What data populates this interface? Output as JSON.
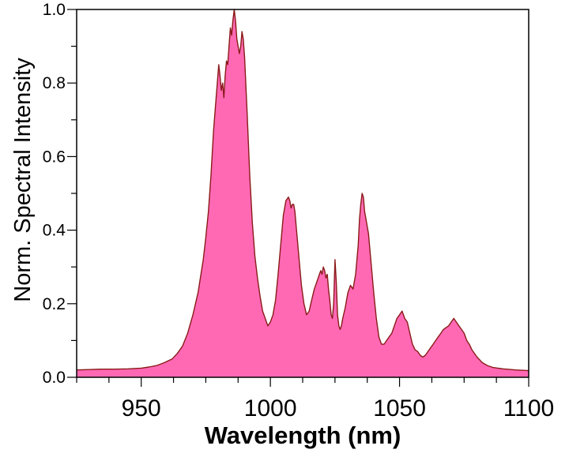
{
  "chart_data": {
    "type": "area",
    "title": "",
    "xlabel": "Wavelength (nm)",
    "ylabel": "Norm. Spectral Intensity",
    "xlim": [
      925,
      1100
    ],
    "ylim": [
      0,
      1.0
    ],
    "x_ticks": [
      950,
      1000,
      1050,
      1100
    ],
    "y_ticks": [
      0.0,
      0.2,
      0.4,
      0.6,
      0.8,
      1.0
    ],
    "x_tick_labels": [
      "950",
      "1000",
      "1050",
      "1100"
    ],
    "y_tick_labels": [
      "0.0",
      "0.2",
      "0.4",
      "0.6",
      "0.8",
      "1.0"
    ],
    "grid": false,
    "legend": false,
    "colors": {
      "fill": "#ff69b4",
      "line": "#8b1a1a",
      "axis": "#000000"
    },
    "series": [
      {
        "x": [
          925,
          930,
          935,
          940,
          945,
          950,
          953,
          956,
          959,
          962,
          964,
          966,
          968,
          970,
          972,
          974,
          975,
          976,
          977,
          978,
          979,
          980,
          980.5,
          981,
          981.5,
          982,
          982.5,
          983,
          983.5,
          984,
          984.5,
          985,
          985.5,
          986,
          986.5,
          987,
          987.5,
          988,
          988.5,
          989,
          989.5,
          990,
          991,
          992,
          993,
          994,
          995,
          996,
          997,
          998,
          999,
          1000,
          1001,
          1002,
          1003,
          1004,
          1005,
          1006,
          1007,
          1007.5,
          1008,
          1008.5,
          1009,
          1009.5,
          1010,
          1011,
          1012,
          1013,
          1014,
          1015,
          1016,
          1017,
          1018,
          1019,
          1019.5,
          1020,
          1020.5,
          1021,
          1021.5,
          1022,
          1022.5,
          1023,
          1023.5,
          1024,
          1024.5,
          1025,
          1025.5,
          1026,
          1026.5,
          1027,
          1027.5,
          1028,
          1029,
          1030,
          1031,
          1032,
          1033,
          1034,
          1034.5,
          1035,
          1035.5,
          1036,
          1036.5,
          1037,
          1038,
          1039,
          1040,
          1041,
          1042,
          1043,
          1044,
          1045,
          1046,
          1047,
          1048,
          1049,
          1050,
          1051,
          1052,
          1053,
          1054,
          1055,
          1056,
          1057,
          1058,
          1059,
          1060,
          1061,
          1062,
          1063,
          1064,
          1065,
          1066,
          1067,
          1068,
          1069,
          1070,
          1071,
          1072,
          1073,
          1074,
          1075,
          1076,
          1077,
          1078,
          1080,
          1082,
          1084,
          1086,
          1088,
          1090,
          1095,
          1100
        ],
        "y": [
          0.02,
          0.021,
          0.022,
          0.022,
          0.023,
          0.025,
          0.028,
          0.032,
          0.04,
          0.05,
          0.065,
          0.085,
          0.12,
          0.17,
          0.23,
          0.32,
          0.38,
          0.45,
          0.55,
          0.67,
          0.76,
          0.85,
          0.82,
          0.78,
          0.8,
          0.76,
          0.82,
          0.86,
          0.85,
          0.9,
          0.95,
          0.93,
          0.97,
          1.0,
          0.97,
          0.92,
          0.9,
          0.88,
          0.9,
          0.94,
          0.92,
          0.87,
          0.72,
          0.55,
          0.42,
          0.33,
          0.27,
          0.22,
          0.18,
          0.16,
          0.14,
          0.15,
          0.17,
          0.21,
          0.28,
          0.36,
          0.44,
          0.48,
          0.49,
          0.48,
          0.46,
          0.47,
          0.47,
          0.45,
          0.41,
          0.33,
          0.25,
          0.2,
          0.17,
          0.18,
          0.21,
          0.24,
          0.26,
          0.28,
          0.29,
          0.28,
          0.3,
          0.29,
          0.27,
          0.28,
          0.24,
          0.21,
          0.17,
          0.16,
          0.2,
          0.32,
          0.26,
          0.17,
          0.14,
          0.13,
          0.14,
          0.16,
          0.19,
          0.23,
          0.25,
          0.24,
          0.28,
          0.36,
          0.43,
          0.47,
          0.5,
          0.49,
          0.45,
          0.43,
          0.39,
          0.31,
          0.23,
          0.16,
          0.11,
          0.09,
          0.09,
          0.1,
          0.11,
          0.12,
          0.14,
          0.16,
          0.17,
          0.18,
          0.16,
          0.15,
          0.12,
          0.09,
          0.075,
          0.07,
          0.06,
          0.055,
          0.06,
          0.07,
          0.08,
          0.09,
          0.1,
          0.11,
          0.12,
          0.13,
          0.135,
          0.14,
          0.15,
          0.16,
          0.15,
          0.14,
          0.13,
          0.12,
          0.1,
          0.09,
          0.075,
          0.055,
          0.04,
          0.032,
          0.027,
          0.025,
          0.023,
          0.02,
          0.018
        ]
      }
    ]
  }
}
